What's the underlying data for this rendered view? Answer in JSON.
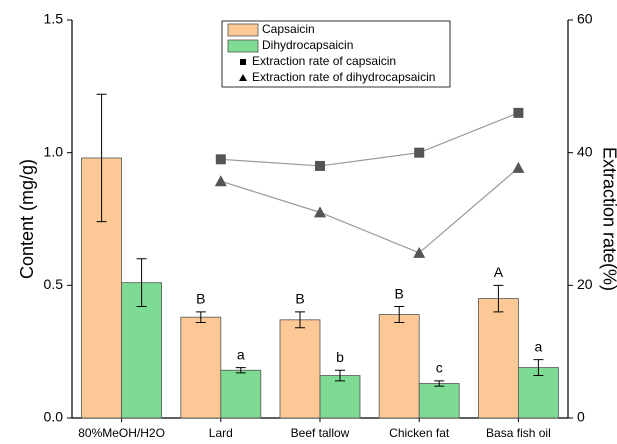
{
  "chart_data": {
    "type": "bar",
    "categories": [
      "80%MeOH/H2O",
      "Lard",
      "Beef tallow",
      "Chicken fat",
      "Basa fish oil"
    ],
    "ylabel": "Content (mg/g)",
    "y2label": "Extraction rate(%)",
    "ylim": [
      0,
      1.5
    ],
    "yticks": [
      {
        "value": 0,
        "label": "0.0"
      },
      0.5,
      {
        "value": 1,
        "label": "1.0"
      },
      1.5
    ],
    "y2lim": [
      0,
      60
    ],
    "y2ticks": [
      0,
      20,
      40,
      60
    ],
    "series": [
      {
        "name": "Capsaicin",
        "type": "bar",
        "color": "#fbc896",
        "values": [
          0.98,
          0.38,
          0.37,
          0.39,
          0.45
        ],
        "errors": [
          0.24,
          0.02,
          0.03,
          0.03,
          0.05
        ],
        "labels": [
          null,
          "B",
          "B",
          "B",
          "A"
        ]
      },
      {
        "name": "Dihydrocapsaicin",
        "type": "bar",
        "color": "#7ddb93",
        "values": [
          0.51,
          0.18,
          0.16,
          0.13,
          0.19
        ],
        "errors": [
          0.09,
          0.01,
          0.02,
          0.01,
          0.03
        ],
        "labels": [
          null,
          "a",
          "b",
          "c",
          "a"
        ]
      },
      {
        "name": "Extraction rate of capsaicin",
        "type": "line",
        "axis": "y2",
        "marker": "square",
        "color": "#555555",
        "values": [
          null,
          39,
          38,
          40,
          46
        ]
      },
      {
        "name": "Extraction rate of dihydrocapsaicin",
        "type": "line",
        "axis": "y2",
        "marker": "triangle",
        "color": "#555555",
        "values": [
          null,
          35.7,
          31,
          24.9,
          37.7
        ]
      }
    ]
  }
}
